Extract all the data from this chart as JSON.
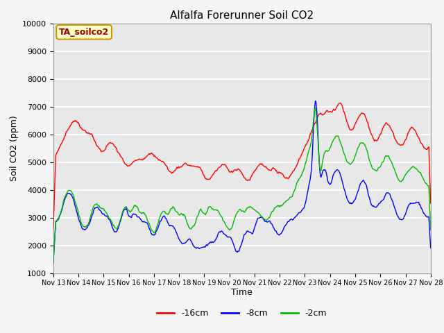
{
  "title": "Alfalfa Forerunner Soil CO2",
  "xlabel": "Time",
  "ylabel": "Soil CO2 (ppm)",
  "ylim": [
    1000,
    10000
  ],
  "yticks": [
    1000,
    2000,
    3000,
    4000,
    5000,
    6000,
    7000,
    8000,
    9000,
    10000
  ],
  "x_labels": [
    "Nov 13",
    "Nov 14",
    "Nov 15",
    "Nov 16",
    "Nov 17",
    "Nov 18",
    "Nov 19",
    "Nov 20",
    "Nov 21",
    "Nov 22",
    "Nov 23",
    "Nov 24",
    "Nov 25",
    "Nov 26",
    "Nov 27",
    "Nov 28"
  ],
  "legend_label": "TA_soilco2",
  "line_colors": {
    "m16cm": "#ff0000",
    "m8cm": "#0000ff",
    "m2cm": "#00bb00"
  },
  "line_labels": [
    "-16cm",
    "-8cm",
    "-2cm"
  ],
  "plot_bg": "#e8e8e8",
  "fig_bg": "#f5f5f5",
  "grid_color": "#ffffff",
  "n_points": 600
}
